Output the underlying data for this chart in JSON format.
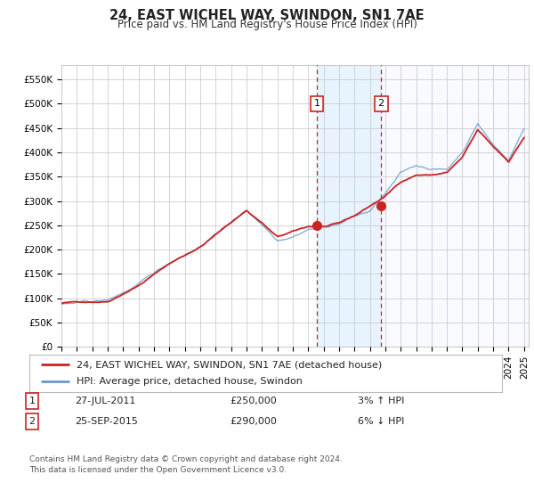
{
  "title": "24, EAST WICHEL WAY, SWINDON, SN1 7AE",
  "subtitle": "Price paid vs. HM Land Registry's House Price Index (HPI)",
  "xlim_start": 1995.0,
  "xlim_end": 2025.3,
  "ylim_min": 0,
  "ylim_max": 580000,
  "yticks": [
    0,
    50000,
    100000,
    150000,
    200000,
    250000,
    300000,
    350000,
    400000,
    450000,
    500000,
    550000
  ],
  "ytick_labels": [
    "£0",
    "£50K",
    "£100K",
    "£150K",
    "£200K",
    "£250K",
    "£300K",
    "£350K",
    "£400K",
    "£450K",
    "£500K",
    "£550K"
  ],
  "xticks": [
    1995,
    1996,
    1997,
    1998,
    1999,
    2000,
    2001,
    2002,
    2003,
    2004,
    2005,
    2006,
    2007,
    2008,
    2009,
    2010,
    2011,
    2012,
    2013,
    2014,
    2015,
    2016,
    2017,
    2018,
    2019,
    2020,
    2021,
    2022,
    2023,
    2024,
    2025
  ],
  "background_color": "#ffffff",
  "grid_color": "#cccccc",
  "line_red_color": "#cc2222",
  "line_blue_color": "#6699cc",
  "transaction1_x": 2011.57,
  "transaction1_y": 250000,
  "transaction2_x": 2015.73,
  "transaction2_y": 290000,
  "shade_mid_color": "#ddeeff",
  "legend_line1": "24, EAST WICHEL WAY, SWINDON, SN1 7AE (detached house)",
  "legend_line2": "HPI: Average price, detached house, Swindon",
  "note1_date": "27-JUL-2011",
  "note1_price": "£250,000",
  "note1_hpi": "3% ↑ HPI",
  "note2_date": "25-SEP-2015",
  "note2_price": "£290,000",
  "note2_hpi": "6% ↓ HPI",
  "footer": "Contains HM Land Registry data © Crown copyright and database right 2024.\nThis data is licensed under the Open Government Licence v3.0."
}
